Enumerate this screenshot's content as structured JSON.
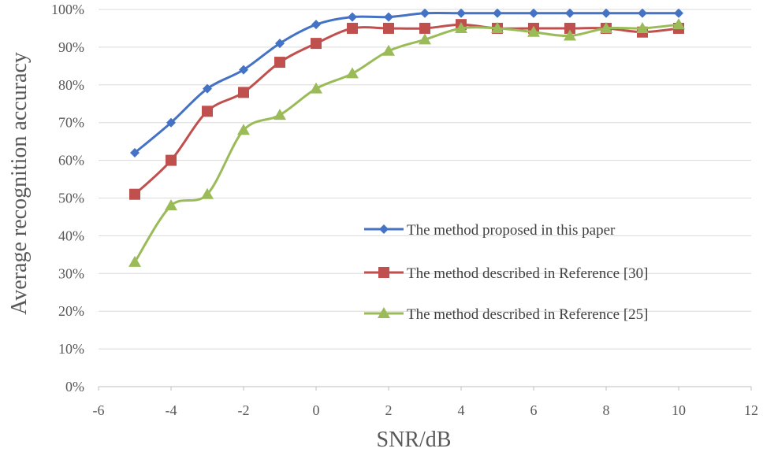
{
  "chart_data": {
    "type": "line",
    "title": "",
    "xlabel": "SNR/dB",
    "ylabel": "Average recognition accuracy",
    "xlim": [
      -6,
      12
    ],
    "ylim": [
      0,
      100
    ],
    "x_ticks": [
      -6,
      -4,
      -2,
      0,
      2,
      4,
      6,
      8,
      10,
      12
    ],
    "x_tick_labels": [
      "-6",
      "-4",
      "-2",
      "0",
      "2",
      "4",
      "6",
      "8",
      "10",
      "12"
    ],
    "y_ticks": [
      0,
      10,
      20,
      30,
      40,
      50,
      60,
      70,
      80,
      90,
      100
    ],
    "y_tick_labels": [
      "0%",
      "10%",
      "20%",
      "30%",
      "40%",
      "50%",
      "60%",
      "70%",
      "80%",
      "90%",
      "100%"
    ],
    "grid": "horizontal",
    "legend_position": "center-right",
    "x": [
      -5,
      -4,
      -3,
      -2,
      -1,
      0,
      1,
      2,
      3,
      4,
      5,
      6,
      7,
      8,
      9,
      10
    ],
    "series": [
      {
        "name": "The method proposed in this paper",
        "color": "#4472C4",
        "marker": "diamond",
        "values": [
          62,
          70,
          79,
          84,
          91,
          96,
          98,
          98,
          99,
          99,
          99,
          99,
          99,
          99,
          99,
          99
        ]
      },
      {
        "name": "The method described in Reference [30]",
        "color": "#C0504D",
        "marker": "square",
        "values": [
          51,
          60,
          73,
          78,
          86,
          91,
          95,
          95,
          95,
          96,
          95,
          95,
          95,
          95,
          94,
          95
        ]
      },
      {
        "name": "The method described in Reference [25]",
        "color": "#9BBB59",
        "marker": "triangle",
        "values": [
          33,
          48,
          51,
          68,
          72,
          79,
          83,
          89,
          92,
          95,
          95,
          94,
          93,
          95,
          95,
          96
        ]
      }
    ]
  }
}
